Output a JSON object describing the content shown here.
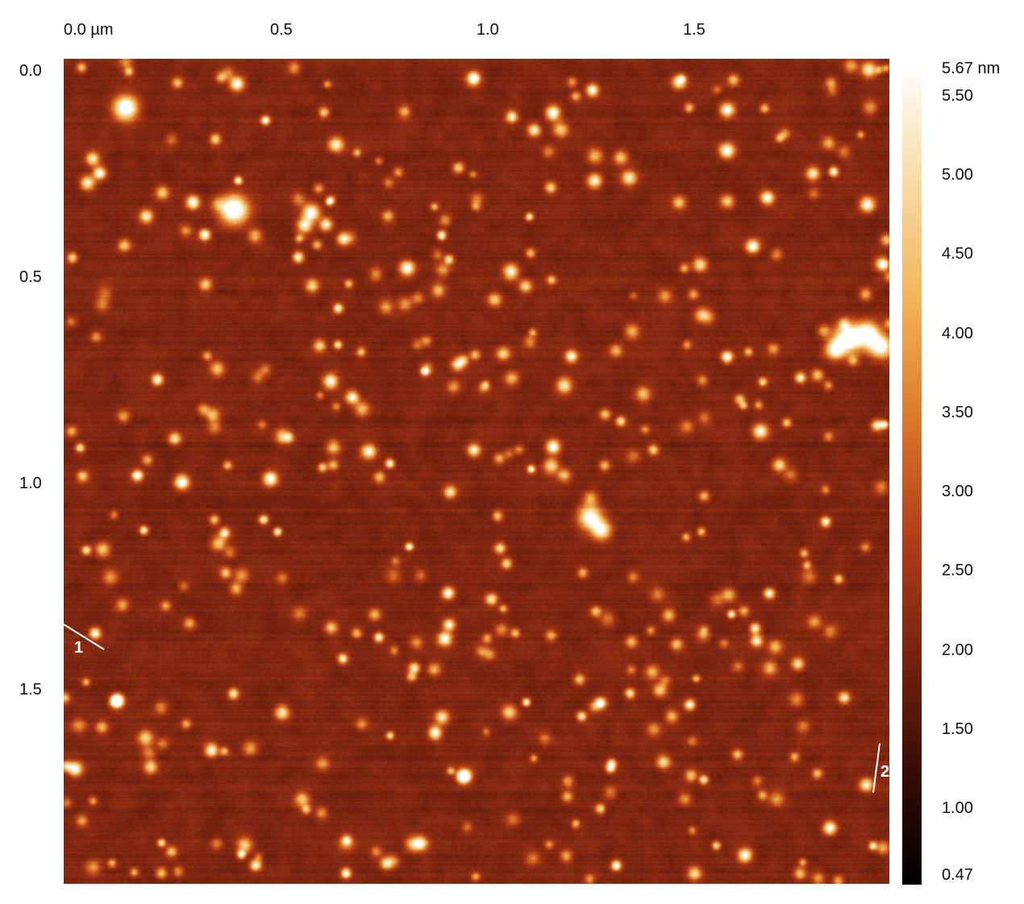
{
  "x_axis": {
    "ticks": [
      {
        "value": 0.0,
        "label": "0.0 µm"
      },
      {
        "value": 0.5,
        "label": "0.5"
      },
      {
        "value": 1.0,
        "label": "1.0"
      },
      {
        "value": 1.5,
        "label": "1.5"
      }
    ]
  },
  "y_axis": {
    "ticks": [
      {
        "value": 0.0,
        "label": "0.0"
      },
      {
        "value": 0.5,
        "label": "0.5"
      },
      {
        "value": 1.0,
        "label": "1.0"
      },
      {
        "value": 1.5,
        "label": "1.5"
      }
    ]
  },
  "colorbar": {
    "max": 5.67,
    "min": 0.47,
    "ticks": [
      {
        "value": 5.67,
        "label": "5.67 nm"
      },
      {
        "value": 5.5,
        "label": "5.50"
      },
      {
        "value": 5.0,
        "label": "5.00"
      },
      {
        "value": 4.5,
        "label": "4.50"
      },
      {
        "value": 4.0,
        "label": "4.00"
      },
      {
        "value": 3.5,
        "label": "3.50"
      },
      {
        "value": 3.0,
        "label": "3.00"
      },
      {
        "value": 2.5,
        "label": "2.50"
      },
      {
        "value": 2.0,
        "label": "2.00"
      },
      {
        "value": 1.5,
        "label": "1.50"
      },
      {
        "value": 1.0,
        "label": "1.00"
      },
      {
        "value": 0.47,
        "label": "0.47"
      }
    ],
    "palette": [
      "#000000",
      "#3a0e05",
      "#7a2410",
      "#b5401a",
      "#dc7a2c",
      "#f3b55a",
      "#f8dca4",
      "#ffffff"
    ]
  },
  "profiles": [
    {
      "label": "1"
    },
    {
      "label": "2"
    }
  ]
}
